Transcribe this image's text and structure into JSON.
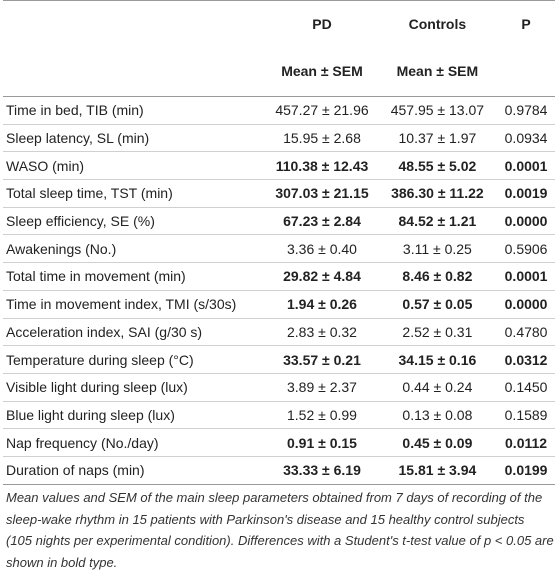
{
  "table": {
    "columns": [
      "PD",
      "Controls",
      "P"
    ],
    "subheader": [
      "Mean ± SEM",
      "Mean ± SEM"
    ],
    "rows": [
      {
        "cells": [
          "Time in bed, TIB (min)",
          "457.27 ± 21.96",
          "457.95 ± 13.07",
          "0.9784"
        ],
        "bold": false
      },
      {
        "cells": [
          "Sleep latency, SL (min)",
          "15.95 ± 2.68",
          "10.37 ± 1.97",
          "0.0934"
        ],
        "bold": false
      },
      {
        "cells": [
          "WASO (min)",
          "110.38 ± 12.43",
          "48.55 ± 5.02",
          "0.0001"
        ],
        "bold": true
      },
      {
        "cells": [
          "Total sleep time, TST (min)",
          "307.03 ± 21.15",
          "386.30 ± 11.22",
          "0.0019"
        ],
        "bold": true
      },
      {
        "cells": [
          "Sleep efficiency, SE (%)",
          "67.23 ± 2.84",
          "84.52 ± 1.21",
          "0.0000"
        ],
        "bold": true
      },
      {
        "cells": [
          "Awakenings (No.)",
          "3.36 ± 0.40",
          "3.11 ± 0.25",
          "0.5906"
        ],
        "bold": false
      },
      {
        "cells": [
          "Total time in movement (min)",
          "29.82 ± 4.84",
          "8.46 ± 0.82",
          "0.0001"
        ],
        "bold": true
      },
      {
        "cells": [
          "Time in movement index, TMI (s/30s)",
          "1.94 ± 0.26",
          "0.57 ± 0.05",
          "0.0000"
        ],
        "bold": true
      },
      {
        "cells": [
          "Acceleration index, SAI (g/30 s)",
          "2.83 ± 0.32",
          "2.52 ± 0.31",
          "0.4780"
        ],
        "bold": false
      },
      {
        "cells": [
          "Temperature during sleep (°C)",
          "33.57 ± 0.21",
          "34.15 ± 0.16",
          "0.0312"
        ],
        "bold": true
      },
      {
        "cells": [
          "Visible light during sleep (lux)",
          "3.89 ± 2.37",
          "0.44 ± 0.24",
          "0.1450"
        ],
        "bold": false
      },
      {
        "cells": [
          "Blue light during sleep (lux)",
          "1.52 ± 0.99",
          "0.13 ± 0.08",
          "0.1589"
        ],
        "bold": false
      },
      {
        "cells": [
          "Nap frequency (No./day)",
          "0.91 ± 0.15",
          "0.45 ± 0.09",
          "0.0112"
        ],
        "bold": true
      },
      {
        "cells": [
          "Duration of naps (min)",
          "33.33 ± 6.19",
          "15.81 ± 3.94",
          "0.0199"
        ],
        "bold": true
      }
    ],
    "footnote": "Mean values and SEM of the main sleep parameters obtained from 7 days of recording of the sleep-wake rhythm in 15 patients with Parkinson's disease and 15 healthy control subjects (105 nights per experimental condition). Differences with a Student's t-test value of p < 0.05 are shown in bold type."
  }
}
